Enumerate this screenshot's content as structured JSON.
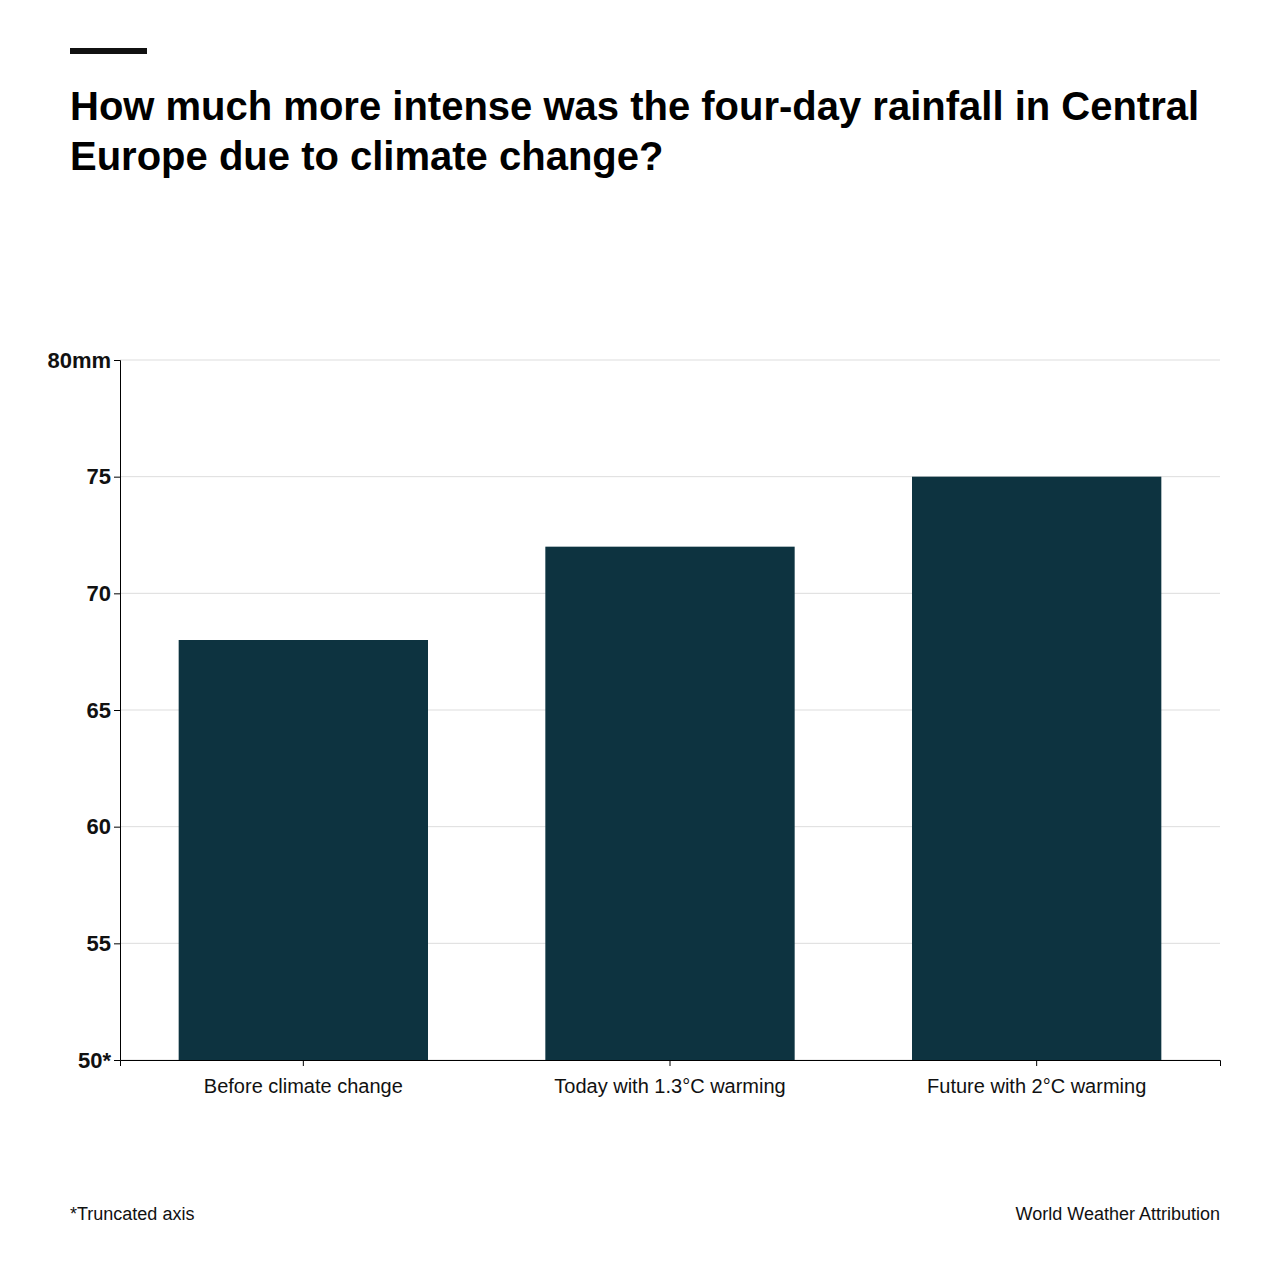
{
  "chart_data": {
    "type": "bar",
    "title": "How much more intense was the four-day rainfall in Central Europe due to climate change?",
    "categories": [
      "Before climate change",
      "Today with 1.3°C warming",
      "Future with 2°C warming"
    ],
    "values": [
      68,
      72,
      75
    ],
    "color": "#0D3340",
    "ylim": [
      50,
      80
    ],
    "yticks": [
      {
        "value": 50,
        "label": "50*"
      },
      55,
      60,
      65,
      70,
      75,
      {
        "value": 80,
        "label": "80mm"
      }
    ],
    "grid": true,
    "annotations": [
      "*Truncated axis",
      "World Weather Attribution"
    ]
  }
}
